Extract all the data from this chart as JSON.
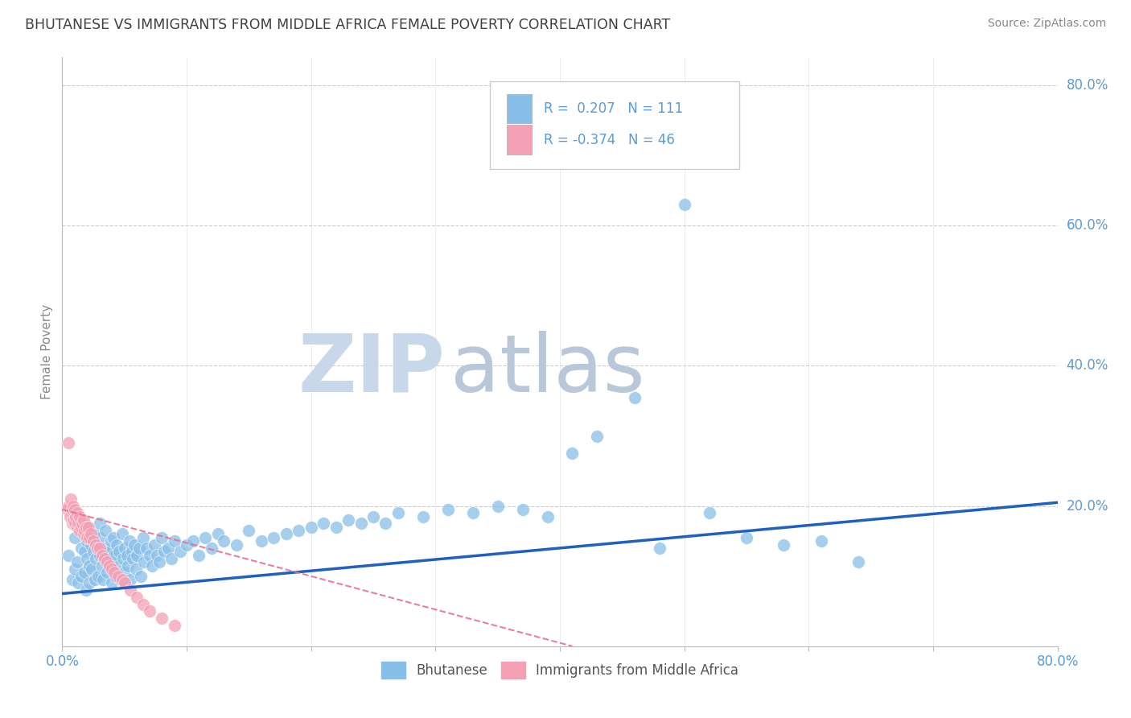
{
  "title": "BHUTANESE VS IMMIGRANTS FROM MIDDLE AFRICA FEMALE POVERTY CORRELATION CHART",
  "source": "Source: ZipAtlas.com",
  "ylabel": "Female Poverty",
  "legend1_label": "Bhutanese",
  "legend2_label": "Immigrants from Middle Africa",
  "r1": "0.207",
  "n1": "111",
  "r2": "-0.374",
  "n2": "46",
  "blue_color": "#88bfe8",
  "pink_color": "#f4a0b5",
  "blue_line_color": "#2060c0",
  "pink_line_color": "#e87090",
  "watermark_zip_color": "#c8d8ea",
  "watermark_atlas_color": "#b8c8d8",
  "background_color": "#ffffff",
  "grid_color": "#cccccc",
  "title_color": "#404040",
  "axis_label_color": "#5b9bd5",
  "xmin": 0.0,
  "xmax": 0.8,
  "ymin": 0.0,
  "ymax": 0.84,
  "blue_line_x0": 0.0,
  "blue_line_x1": 0.8,
  "blue_line_y0": 0.075,
  "blue_line_y1": 0.205,
  "pink_line_x0": 0.0,
  "pink_line_x1": 0.41,
  "pink_line_y0": 0.195,
  "pink_line_y1": 0.0,
  "blue_scatter_x": [
    0.005,
    0.008,
    0.01,
    0.01,
    0.012,
    0.013,
    0.015,
    0.015,
    0.016,
    0.018,
    0.018,
    0.019,
    0.02,
    0.02,
    0.02,
    0.022,
    0.022,
    0.023,
    0.024,
    0.025,
    0.025,
    0.026,
    0.027,
    0.028,
    0.029,
    0.03,
    0.03,
    0.03,
    0.032,
    0.033,
    0.034,
    0.035,
    0.035,
    0.036,
    0.038,
    0.039,
    0.04,
    0.04,
    0.041,
    0.042,
    0.043,
    0.044,
    0.045,
    0.046,
    0.047,
    0.048,
    0.049,
    0.05,
    0.05,
    0.052,
    0.053,
    0.054,
    0.055,
    0.056,
    0.057,
    0.058,
    0.059,
    0.06,
    0.062,
    0.063,
    0.065,
    0.066,
    0.068,
    0.07,
    0.072,
    0.074,
    0.076,
    0.078,
    0.08,
    0.082,
    0.085,
    0.088,
    0.09,
    0.095,
    0.1,
    0.105,
    0.11,
    0.115,
    0.12,
    0.125,
    0.13,
    0.14,
    0.15,
    0.16,
    0.17,
    0.18,
    0.19,
    0.2,
    0.21,
    0.22,
    0.23,
    0.24,
    0.25,
    0.26,
    0.27,
    0.29,
    0.31,
    0.33,
    0.35,
    0.37,
    0.39,
    0.41,
    0.43,
    0.46,
    0.48,
    0.5,
    0.52,
    0.55,
    0.58,
    0.61,
    0.64
  ],
  "blue_scatter_y": [
    0.13,
    0.095,
    0.11,
    0.155,
    0.12,
    0.09,
    0.14,
    0.1,
    0.165,
    0.105,
    0.135,
    0.08,
    0.125,
    0.15,
    0.17,
    0.115,
    0.09,
    0.145,
    0.11,
    0.135,
    0.16,
    0.095,
    0.125,
    0.145,
    0.1,
    0.13,
    0.155,
    0.175,
    0.115,
    0.095,
    0.14,
    0.125,
    0.165,
    0.105,
    0.135,
    0.15,
    0.12,
    0.09,
    0.155,
    0.13,
    0.1,
    0.145,
    0.115,
    0.135,
    0.095,
    0.16,
    0.125,
    0.14,
    0.105,
    0.13,
    0.115,
    0.15,
    0.095,
    0.135,
    0.125,
    0.145,
    0.11,
    0.13,
    0.14,
    0.1,
    0.155,
    0.12,
    0.14,
    0.13,
    0.115,
    0.145,
    0.13,
    0.12,
    0.155,
    0.135,
    0.14,
    0.125,
    0.15,
    0.135,
    0.145,
    0.15,
    0.13,
    0.155,
    0.14,
    0.16,
    0.15,
    0.145,
    0.165,
    0.15,
    0.155,
    0.16,
    0.165,
    0.17,
    0.175,
    0.17,
    0.18,
    0.175,
    0.185,
    0.175,
    0.19,
    0.185,
    0.195,
    0.19,
    0.2,
    0.195,
    0.185,
    0.275,
    0.3,
    0.355,
    0.14,
    0.63,
    0.19,
    0.155,
    0.145,
    0.15,
    0.12
  ],
  "pink_scatter_x": [
    0.004,
    0.005,
    0.006,
    0.007,
    0.008,
    0.008,
    0.009,
    0.009,
    0.01,
    0.01,
    0.011,
    0.012,
    0.012,
    0.013,
    0.014,
    0.014,
    0.015,
    0.016,
    0.017,
    0.017,
    0.018,
    0.019,
    0.02,
    0.021,
    0.022,
    0.023,
    0.025,
    0.027,
    0.028,
    0.03,
    0.032,
    0.034,
    0.036,
    0.038,
    0.04,
    0.042,
    0.045,
    0.048,
    0.05,
    0.055,
    0.06,
    0.065,
    0.07,
    0.08,
    0.09,
    0.005
  ],
  "pink_scatter_y": [
    0.195,
    0.2,
    0.185,
    0.21,
    0.175,
    0.195,
    0.18,
    0.2,
    0.175,
    0.195,
    0.185,
    0.17,
    0.19,
    0.175,
    0.165,
    0.185,
    0.17,
    0.175,
    0.16,
    0.18,
    0.165,
    0.17,
    0.155,
    0.17,
    0.155,
    0.16,
    0.15,
    0.145,
    0.14,
    0.14,
    0.13,
    0.125,
    0.12,
    0.115,
    0.11,
    0.105,
    0.1,
    0.095,
    0.09,
    0.08,
    0.07,
    0.06,
    0.05,
    0.04,
    0.03,
    0.29
  ]
}
